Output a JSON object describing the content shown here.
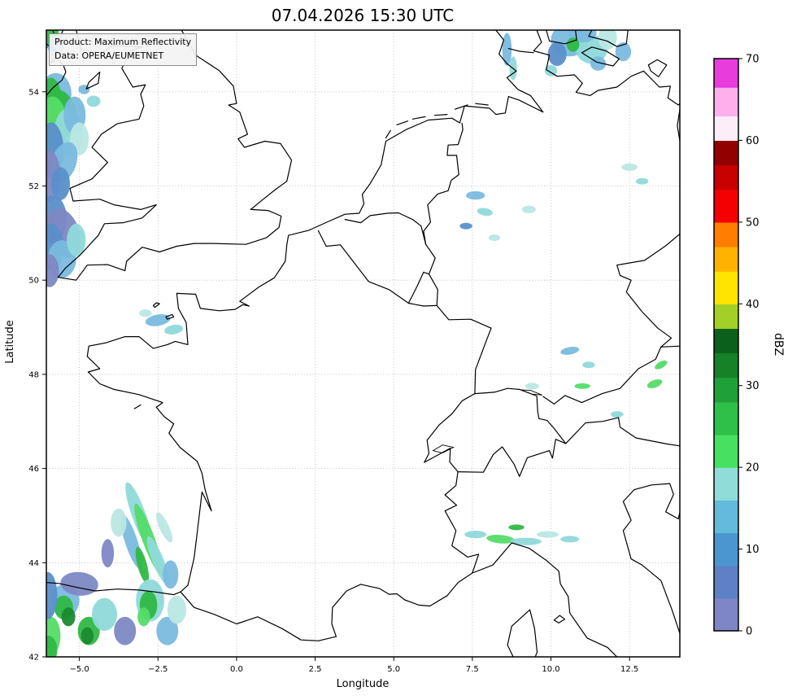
{
  "title": "07.04.2026 15:30 UTC",
  "product_box": {
    "line1": "Product: Maximum Reflectivity",
    "line2": "Data: OPERA/EUMETNET"
  },
  "axes": {
    "xlabel": "Longitude",
    "ylabel": "Latitude",
    "x_ticks": [
      {
        "v": -5.0,
        "label": "−5.0"
      },
      {
        "v": -2.5,
        "label": "−2.5"
      },
      {
        "v": 0.0,
        "label": "0.0"
      },
      {
        "v": 2.5,
        "label": "2.5"
      },
      {
        "v": 5.0,
        "label": "5.0"
      },
      {
        "v": 7.5,
        "label": "7.5"
      },
      {
        "v": 10.0,
        "label": "10.0"
      },
      {
        "v": 12.5,
        "label": "12.5"
      }
    ],
    "y_ticks": [
      {
        "v": 42,
        "label": "42"
      },
      {
        "v": 44,
        "label": "44"
      },
      {
        "v": 46,
        "label": "46"
      },
      {
        "v": 48,
        "label": "48"
      },
      {
        "v": 50,
        "label": "50"
      },
      {
        "v": 52,
        "label": "52"
      },
      {
        "v": 54,
        "label": "54"
      }
    ]
  },
  "colorbar": {
    "label": "dBZ",
    "min": 0,
    "max": 70,
    "ticks": [
      0,
      10,
      20,
      30,
      40,
      50,
      60,
      70
    ],
    "bands": [
      {
        "from": 0,
        "to": 4,
        "color": "#7e86c6"
      },
      {
        "from": 4,
        "to": 8,
        "color": "#5e81c6"
      },
      {
        "from": 8,
        "to": 12,
        "color": "#4c96cf"
      },
      {
        "from": 12,
        "to": 16,
        "color": "#64badb"
      },
      {
        "from": 16,
        "to": 20,
        "color": "#90dcd9"
      },
      {
        "from": 20,
        "to": 24,
        "color": "#47e061"
      },
      {
        "from": 24,
        "to": 28,
        "color": "#2fc04a"
      },
      {
        "from": 28,
        "to": 31,
        "color": "#20a038"
      },
      {
        "from": 31,
        "to": 34,
        "color": "#168127"
      },
      {
        "from": 34,
        "to": 37,
        "color": "#0b611b"
      },
      {
        "from": 37,
        "to": 40,
        "color": "#a2d026"
      },
      {
        "from": 40,
        "to": 44,
        "color": "#ffe400"
      },
      {
        "from": 44,
        "to": 47,
        "color": "#ffb300"
      },
      {
        "from": 47,
        "to": 50,
        "color": "#ff7d00"
      },
      {
        "from": 50,
        "to": 54,
        "color": "#f40000"
      },
      {
        "from": 54,
        "to": 57,
        "color": "#c80000"
      },
      {
        "from": 57,
        "to": 60,
        "color": "#930000"
      },
      {
        "from": 60,
        "to": 63,
        "color": "#fceef9"
      },
      {
        "from": 63,
        "to": 66.5,
        "color": "#ffb0ec"
      },
      {
        "from": 66.5,
        "to": 70,
        "color": "#e83cdc"
      }
    ]
  },
  "chart_data": {
    "type": "heatmap",
    "title": "07.04.2026 15:30 UTC",
    "product": "Maximum Reflectivity",
    "data_source": "OPERA/EUMETNET",
    "units": "dBZ",
    "xlabel": "Longitude",
    "ylabel": "Latitude",
    "extent": {
      "lon": [
        -6.05,
        14.1
      ],
      "lat": [
        42,
        55.31
      ]
    },
    "value_range": [
      0,
      70
    ],
    "echo_colors": {
      "sl": "#7d88c4",
      "bl": "#5b8fca",
      "lb": "#7abade",
      "cy": "#90d9da",
      "pc": "#b9e7e3",
      "lg": "#55dc68",
      "gr": "#2fb845",
      "dg": "#1b8a2d"
    },
    "echoes": [
      [
        -5.75,
        53.95,
        0.5,
        0.45,
        0,
        "lb"
      ],
      [
        -5.9,
        53.75,
        0.35,
        0.55,
        0,
        "gr"
      ],
      [
        -5.55,
        53.55,
        0.45,
        0.5,
        -15,
        "gr"
      ],
      [
        -5.85,
        53.3,
        0.45,
        0.6,
        0,
        "lg"
      ],
      [
        -5.35,
        53.15,
        0.45,
        0.5,
        0,
        "cy"
      ],
      [
        -5.15,
        53.5,
        0.35,
        0.4,
        0,
        "lb"
      ],
      [
        -5.0,
        53.0,
        0.3,
        0.35,
        0,
        "pc"
      ],
      [
        -5.9,
        52.75,
        0.4,
        0.6,
        0,
        "bl"
      ],
      [
        -5.5,
        52.5,
        0.4,
        0.45,
        20,
        "lb"
      ],
      [
        -5.95,
        52.2,
        0.35,
        0.55,
        0,
        "sl"
      ],
      [
        -5.6,
        52.05,
        0.3,
        0.35,
        0,
        "bl"
      ],
      [
        -4.55,
        53.8,
        0.22,
        0.12,
        0,
        "cy"
      ],
      [
        -4.85,
        54.05,
        0.18,
        0.1,
        0,
        "lb"
      ],
      [
        -5.95,
        55.2,
        0.3,
        0.28,
        0,
        "gr"
      ],
      [
        -5.75,
        54.95,
        0.25,
        0.2,
        0,
        "lb"
      ],
      [
        -5.85,
        51.3,
        0.45,
        0.5,
        0,
        "bl"
      ],
      [
        -5.5,
        51.0,
        0.5,
        0.55,
        -20,
        "sl"
      ],
      [
        -5.9,
        50.7,
        0.4,
        0.5,
        0,
        "bl"
      ],
      [
        -5.55,
        50.45,
        0.45,
        0.4,
        0,
        "lb"
      ],
      [
        -5.1,
        50.85,
        0.3,
        0.35,
        0,
        "cy"
      ],
      [
        -5.95,
        50.2,
        0.3,
        0.35,
        0,
        "sl"
      ],
      [
        -2.5,
        49.15,
        0.4,
        0.12,
        -10,
        "lb"
      ],
      [
        -2.0,
        48.95,
        0.3,
        0.1,
        -10,
        "cy"
      ],
      [
        -2.9,
        49.3,
        0.2,
        0.08,
        0,
        "pc"
      ],
      [
        -3.1,
        45.0,
        0.22,
        0.75,
        -20,
        "cy"
      ],
      [
        -2.8,
        44.5,
        0.2,
        0.8,
        -20,
        "lg"
      ],
      [
        -3.35,
        44.45,
        0.2,
        0.6,
        -18,
        "lb"
      ],
      [
        -2.5,
        44.05,
        0.18,
        0.55,
        -22,
        "cy"
      ],
      [
        -3.0,
        43.95,
        0.15,
        0.4,
        -15,
        "gr"
      ],
      [
        -3.75,
        44.85,
        0.25,
        0.3,
        0,
        "pc"
      ],
      [
        -2.3,
        44.75,
        0.15,
        0.35,
        -25,
        "pc"
      ],
      [
        -4.1,
        44.2,
        0.2,
        0.3,
        0,
        "sl"
      ],
      [
        -2.1,
        43.75,
        0.25,
        0.3,
        0,
        "lb"
      ],
      [
        -5.45,
        43.2,
        0.45,
        0.35,
        0,
        "lb"
      ],
      [
        -5.5,
        43.05,
        0.3,
        0.25,
        0,
        "gr"
      ],
      [
        -5.35,
        42.85,
        0.22,
        0.2,
        0,
        "dg"
      ],
      [
        -4.7,
        42.55,
        0.35,
        0.3,
        0,
        "gr"
      ],
      [
        -4.75,
        42.45,
        0.2,
        0.18,
        0,
        "dg"
      ],
      [
        -5.9,
        42.45,
        0.3,
        0.4,
        0,
        "lg"
      ],
      [
        -6.0,
        42.15,
        0.3,
        0.3,
        0,
        "gr"
      ],
      [
        -4.2,
        42.9,
        0.4,
        0.35,
        0,
        "cy"
      ],
      [
        -3.55,
        42.55,
        0.35,
        0.3,
        0,
        "sl"
      ],
      [
        -2.75,
        43.2,
        0.45,
        0.45,
        0,
        "cy"
      ],
      [
        -2.8,
        43.1,
        0.28,
        0.3,
        0,
        "gr"
      ],
      [
        -2.95,
        42.85,
        0.2,
        0.2,
        0,
        "lg"
      ],
      [
        -2.2,
        42.55,
        0.35,
        0.3,
        0,
        "lb"
      ],
      [
        -1.9,
        43.0,
        0.3,
        0.3,
        0,
        "pc"
      ],
      [
        -5.0,
        43.55,
        0.6,
        0.25,
        5,
        "sl"
      ],
      [
        -6.0,
        43.3,
        0.3,
        0.5,
        0,
        "bl"
      ],
      [
        7.6,
        51.8,
        0.3,
        0.09,
        0,
        "lb"
      ],
      [
        7.9,
        51.45,
        0.25,
        0.08,
        10,
        "cy"
      ],
      [
        7.3,
        51.15,
        0.2,
        0.07,
        0,
        "bl"
      ],
      [
        8.2,
        50.9,
        0.18,
        0.07,
        0,
        "pc"
      ],
      [
        9.3,
        51.5,
        0.22,
        0.08,
        0,
        "pc"
      ],
      [
        12.5,
        52.4,
        0.25,
        0.08,
        0,
        "pc"
      ],
      [
        12.9,
        52.1,
        0.2,
        0.07,
        0,
        "cy"
      ],
      [
        10.6,
        48.5,
        0.3,
        0.08,
        -10,
        "lb"
      ],
      [
        11.2,
        48.2,
        0.2,
        0.07,
        0,
        "cy"
      ],
      [
        9.4,
        47.75,
        0.22,
        0.07,
        0,
        "pc"
      ],
      [
        11.0,
        47.75,
        0.25,
        0.06,
        0,
        "lg"
      ],
      [
        13.3,
        47.8,
        0.25,
        0.08,
        -20,
        "lg"
      ],
      [
        13.5,
        48.2,
        0.22,
        0.07,
        -30,
        "lg"
      ],
      [
        12.1,
        47.15,
        0.2,
        0.07,
        0,
        "cy"
      ],
      [
        7.6,
        44.6,
        0.35,
        0.08,
        0,
        "cy"
      ],
      [
        8.4,
        44.5,
        0.45,
        0.09,
        5,
        "lg"
      ],
      [
        9.2,
        44.45,
        0.5,
        0.08,
        0,
        "cy"
      ],
      [
        9.9,
        44.6,
        0.35,
        0.07,
        0,
        "pc"
      ],
      [
        10.6,
        44.5,
        0.3,
        0.07,
        0,
        "cy"
      ],
      [
        8.9,
        44.75,
        0.25,
        0.06,
        0,
        "gr"
      ],
      [
        10.6,
        55.1,
        0.6,
        0.35,
        0,
        "lb"
      ],
      [
        11.3,
        54.9,
        0.5,
        0.3,
        -10,
        "cy"
      ],
      [
        10.2,
        54.8,
        0.3,
        0.25,
        0,
        "bl"
      ],
      [
        11.0,
        55.25,
        0.45,
        0.2,
        0,
        "lb"
      ],
      [
        11.8,
        55.15,
        0.3,
        0.25,
        0,
        "pc"
      ],
      [
        10.0,
        54.45,
        0.2,
        0.12,
        0,
        "cy"
      ],
      [
        11.5,
        54.6,
        0.25,
        0.15,
        0,
        "lb"
      ],
      [
        10.7,
        55.0,
        0.2,
        0.15,
        0,
        "gr"
      ],
      [
        12.3,
        54.85,
        0.25,
        0.2,
        0,
        "lb"
      ],
      [
        8.6,
        54.9,
        0.15,
        0.35,
        0,
        "lb"
      ],
      [
        8.8,
        54.5,
        0.12,
        0.25,
        0,
        "cy"
      ]
    ]
  }
}
